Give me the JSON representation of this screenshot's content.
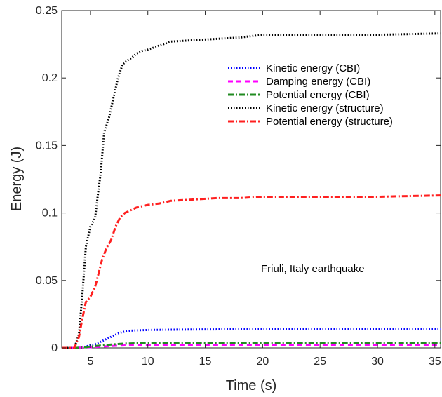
{
  "chart_data": {
    "type": "line",
    "title": "",
    "xlabel": "Time (s)",
    "ylabel": "Energy (J)",
    "xlim": [
      2.5,
      35.5
    ],
    "ylim": [
      0,
      0.25
    ],
    "xticks": [
      5,
      10,
      15,
      20,
      25,
      30,
      35
    ],
    "yticks": [
      0,
      0.05,
      0.1,
      0.15,
      0.2,
      0.25
    ],
    "ytick_labels": [
      "0",
      "0.05",
      "0.1",
      "0.15",
      "0.2",
      "0.25"
    ],
    "grid": false,
    "legend_position": "top-right",
    "annotation": "Friuli, Italy earthquake",
    "series": [
      {
        "name": "Kinetic energy (CBI)",
        "color": "#0000ff",
        "dash": "dotted",
        "x": [
          2.5,
          3.8,
          4.5,
          5.0,
          5.5,
          6.0,
          6.5,
          7.0,
          7.5,
          8.0,
          8.5,
          9.0,
          10.0,
          12.0,
          15.0,
          20.0,
          25.0,
          30.0,
          35.5
        ],
        "y": [
          0,
          0,
          0.0008,
          0.002,
          0.003,
          0.005,
          0.007,
          0.009,
          0.011,
          0.0122,
          0.0128,
          0.013,
          0.0133,
          0.0135,
          0.0137,
          0.0138,
          0.0139,
          0.0139,
          0.014
        ]
      },
      {
        "name": "Damping energy (CBI)",
        "color": "#ff00ff",
        "dash": "dashed",
        "x": [
          2.5,
          3.8,
          5.0,
          6.0,
          7.0,
          8.0,
          10.0,
          15.0,
          20.0,
          25.0,
          30.0,
          35.5
        ],
        "y": [
          0,
          0,
          0.0005,
          0.001,
          0.0015,
          0.0018,
          0.002,
          0.0021,
          0.0022,
          0.0022,
          0.0022,
          0.0022
        ]
      },
      {
        "name": "Potential energy (CBI)",
        "color": "#228b22",
        "dash": "dashdot",
        "x": [
          2.5,
          3.8,
          4.5,
          5.0,
          6.0,
          7.0,
          8.0,
          9.0,
          10.0,
          15.0,
          20.0,
          25.0,
          30.0,
          35.5
        ],
        "y": [
          0,
          0,
          0.0005,
          0.001,
          0.0018,
          0.0026,
          0.0032,
          0.0034,
          0.0035,
          0.0036,
          0.0037,
          0.0037,
          0.0037,
          0.0037
        ]
      },
      {
        "name": "Kinetic energy (structure)",
        "color": "#000000",
        "dash": "dotted",
        "x": [
          2.5,
          3.6,
          4.0,
          4.3,
          4.6,
          5.0,
          5.4,
          5.6,
          5.9,
          6.2,
          6.6,
          7.0,
          7.4,
          7.8,
          8.2,
          8.6,
          9.0,
          9.5,
          10.0,
          11.0,
          12.0,
          14.0,
          16.0,
          18.0,
          20.0,
          22.0,
          25.0,
          30.0,
          35.5
        ],
        "y": [
          0,
          0,
          0.01,
          0.04,
          0.075,
          0.09,
          0.096,
          0.11,
          0.13,
          0.16,
          0.17,
          0.185,
          0.2,
          0.21,
          0.213,
          0.215,
          0.218,
          0.22,
          0.221,
          0.224,
          0.227,
          0.228,
          0.229,
          0.23,
          0.232,
          0.232,
          0.232,
          0.232,
          0.233
        ]
      },
      {
        "name": "Potential energy (structure)",
        "color": "#ff2020",
        "dash": "dashdot",
        "x": [
          2.5,
          3.6,
          4.0,
          4.3,
          4.6,
          5.0,
          5.4,
          5.7,
          6.0,
          6.4,
          6.8,
          7.2,
          7.6,
          8.0,
          8.5,
          9.0,
          9.5,
          10.0,
          11.0,
          12.0,
          14.0,
          16.0,
          18.0,
          20.0,
          25.0,
          30.0,
          35.5
        ],
        "y": [
          0,
          0,
          0.008,
          0.022,
          0.034,
          0.038,
          0.045,
          0.055,
          0.065,
          0.074,
          0.08,
          0.09,
          0.097,
          0.1,
          0.102,
          0.104,
          0.105,
          0.106,
          0.107,
          0.109,
          0.11,
          0.111,
          0.111,
          0.112,
          0.112,
          0.112,
          0.113
        ]
      }
    ]
  }
}
